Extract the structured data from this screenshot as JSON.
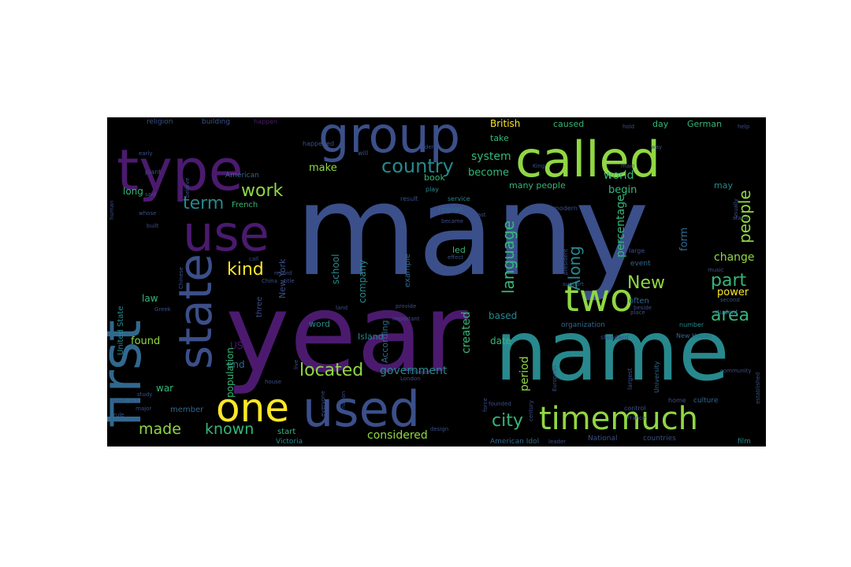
{
  "palette": {
    "background": "#000000",
    "page": "#ffffff",
    "c_purple": "#4b1a6e",
    "c_indigo": "#3b4f8a",
    "c_blue": "#31688e",
    "c_teal": "#27898d",
    "c_green": "#35b779",
    "c_lime": "#90d743",
    "c_yellow": "#fde725"
  },
  "words": [
    {
      "text": "many",
      "color": "c_indigo"
    },
    {
      "text": "year",
      "color": "c_purple"
    },
    {
      "text": "name",
      "color": "c_teal"
    },
    {
      "text": "type",
      "color": "c_purple"
    },
    {
      "text": "group",
      "color": "c_indigo"
    },
    {
      "text": "called",
      "color": "c_lime"
    },
    {
      "text": "first",
      "color": "c_blue"
    },
    {
      "text": "use",
      "color": "c_purple"
    },
    {
      "text": "state",
      "color": "c_indigo"
    },
    {
      "text": "used",
      "color": "c_indigo"
    },
    {
      "text": "one",
      "color": "c_yellow"
    },
    {
      "text": "two",
      "color": "c_lime"
    },
    {
      "text": "timemuch",
      "color": "c_lime"
    },
    {
      "text": "country",
      "color": "c_teal"
    },
    {
      "text": "work",
      "color": "c_lime"
    },
    {
      "text": "term",
      "color": "c_teal"
    },
    {
      "text": "kind",
      "color": "c_yellow"
    },
    {
      "text": "language",
      "color": "c_green"
    },
    {
      "text": "Along",
      "color": "c_teal"
    },
    {
      "text": "people",
      "color": "c_lime"
    },
    {
      "text": "New",
      "color": "c_lime"
    },
    {
      "text": "part",
      "color": "c_green"
    },
    {
      "text": "area",
      "color": "c_green"
    },
    {
      "text": "located",
      "color": "c_lime"
    },
    {
      "text": "city",
      "color": "c_green"
    },
    {
      "text": "made",
      "color": "c_lime"
    },
    {
      "text": "known",
      "color": "c_green"
    },
    {
      "text": "considered",
      "color": "c_lime"
    },
    {
      "text": "government",
      "color": "c_teal"
    },
    {
      "text": "period",
      "color": "c_lime"
    },
    {
      "text": "system",
      "color": "c_green"
    },
    {
      "text": "become",
      "color": "c_green"
    },
    {
      "text": "make",
      "color": "c_lime"
    },
    {
      "text": "world",
      "color": "c_green"
    },
    {
      "text": "begin",
      "color": "c_green"
    },
    {
      "text": "percentage",
      "color": "c_green"
    },
    {
      "text": "form",
      "color": "c_blue"
    },
    {
      "text": "change",
      "color": "c_lime"
    },
    {
      "text": "power",
      "color": "c_yellow"
    },
    {
      "text": "British",
      "color": "c_yellow"
    },
    {
      "text": "caused",
      "color": "c_green"
    },
    {
      "text": "day",
      "color": "c_green"
    },
    {
      "text": "German",
      "color": "c_green"
    },
    {
      "text": "take",
      "color": "c_green"
    },
    {
      "text": "book",
      "color": "c_green"
    },
    {
      "text": "many people",
      "color": "c_green"
    },
    {
      "text": "may",
      "color": "c_teal"
    },
    {
      "text": "long",
      "color": "c_green"
    },
    {
      "text": "found",
      "color": "c_lime"
    },
    {
      "text": "law",
      "color": "c_green"
    },
    {
      "text": "war",
      "color": "c_green"
    },
    {
      "text": "end",
      "color": "c_blue"
    },
    {
      "text": "US",
      "color": "c_purple"
    },
    {
      "text": "population",
      "color": "c_green"
    },
    {
      "text": "school",
      "color": "c_teal"
    },
    {
      "text": "company",
      "color": "c_teal"
    },
    {
      "text": "created",
      "color": "c_green"
    },
    {
      "text": "date",
      "color": "c_green"
    },
    {
      "text": "based",
      "color": "c_teal"
    },
    {
      "text": "word",
      "color": "c_teal"
    },
    {
      "text": "Island",
      "color": "c_teal"
    },
    {
      "text": "According",
      "color": "c_blue"
    },
    {
      "text": "example",
      "color": "c_blue"
    },
    {
      "text": "led",
      "color": "c_green"
    },
    {
      "text": "region",
      "color": "c_blue"
    },
    {
      "text": "New York",
      "color": "c_indigo"
    },
    {
      "text": "French",
      "color": "c_green"
    },
    {
      "text": "American",
      "color": "c_blue"
    },
    {
      "text": "United State",
      "color": "c_teal"
    },
    {
      "text": "member",
      "color": "c_blue"
    },
    {
      "text": "start",
      "color": "c_green"
    },
    {
      "text": "Victoria",
      "color": "c_teal"
    },
    {
      "text": "American Idol",
      "color": "c_blue"
    },
    {
      "text": "National",
      "color": "c_indigo"
    },
    {
      "text": "countries",
      "color": "c_indigo"
    },
    {
      "text": "leader",
      "color": "c_indigo"
    },
    {
      "text": "film",
      "color": "c_teal"
    },
    {
      "text": "three",
      "color": "c_indigo"
    },
    {
      "text": "often",
      "color": "c_blue"
    },
    {
      "text": "organization",
      "color": "c_blue"
    },
    {
      "text": "modern",
      "color": "c_indigo"
    },
    {
      "text": "event",
      "color": "c_blue"
    },
    {
      "text": "large",
      "color": "c_indigo"
    },
    {
      "text": "number",
      "color": "c_teal"
    },
    {
      "text": "New Haven",
      "color": "c_blue"
    },
    {
      "text": "culture",
      "color": "c_blue"
    },
    {
      "text": "home",
      "color": "c_indigo"
    },
    {
      "text": "standard",
      "color": "c_indigo"
    },
    {
      "text": "University",
      "color": "c_blue"
    },
    {
      "text": "control",
      "color": "c_indigo"
    },
    {
      "text": "largest",
      "color": "c_indigo"
    },
    {
      "text": "student",
      "color": "c_blue"
    },
    {
      "text": "religion",
      "color": "c_indigo"
    },
    {
      "text": "building",
      "color": "c_indigo"
    },
    {
      "text": "happen",
      "color": "c_purple"
    },
    {
      "text": "happened",
      "color": "c_indigo"
    },
    {
      "text": "will",
      "color": "c_indigo"
    },
    {
      "text": "order",
      "color": "c_indigo"
    },
    {
      "text": "service",
      "color": "c_teal"
    },
    {
      "text": "play",
      "color": "c_teal"
    },
    {
      "text": "result",
      "color": "c_indigo"
    },
    {
      "text": "plant",
      "color": "c_indigo"
    },
    {
      "text": "said",
      "color": "c_indigo"
    },
    {
      "text": "believe",
      "color": "c_indigo"
    },
    {
      "text": "human",
      "color": "c_indigo"
    },
    {
      "text": "whose",
      "color": "c_indigo"
    },
    {
      "text": "built",
      "color": "c_indigo"
    },
    {
      "text": "call",
      "color": "c_indigo"
    },
    {
      "text": "record",
      "color": "c_indigo"
    },
    {
      "text": "title",
      "color": "c_indigo"
    },
    {
      "text": "Chinese",
      "color": "c_indigo"
    },
    {
      "text": "China",
      "color": "c_indigo"
    },
    {
      "text": "Greek",
      "color": "c_indigo"
    },
    {
      "text": "land",
      "color": "c_indigo"
    },
    {
      "text": "provide",
      "color": "c_indigo"
    },
    {
      "text": "important",
      "color": "c_indigo"
    },
    {
      "text": "house",
      "color": "c_indigo"
    },
    {
      "text": "London",
      "color": "c_indigo"
    },
    {
      "text": "Chopin",
      "color": "c_indigo"
    },
    {
      "text": "founded",
      "color": "c_indigo"
    },
    {
      "text": "nation",
      "color": "c_indigo"
    },
    {
      "text": "rule",
      "color": "c_indigo"
    },
    {
      "text": "major",
      "color": "c_indigo"
    },
    {
      "text": "study",
      "color": "c_indigo"
    },
    {
      "text": "King",
      "color": "c_indigo"
    },
    {
      "text": "main",
      "color": "c_indigo"
    },
    {
      "text": "hold",
      "color": "c_indigo"
    },
    {
      "text": "help",
      "color": "c_indigo"
    },
    {
      "text": "way",
      "color": "c_indigo"
    },
    {
      "text": "last",
      "color": "c_indigo"
    },
    {
      "text": "became",
      "color": "c_indigo"
    },
    {
      "text": "music",
      "color": "c_indigo"
    },
    {
      "text": "support",
      "color": "c_indigo"
    },
    {
      "text": "place",
      "color": "c_indigo"
    },
    {
      "text": "beside",
      "color": "c_indigo"
    },
    {
      "text": "stand",
      "color": "c_indigo"
    },
    {
      "text": "president",
      "color": "c_indigo"
    },
    {
      "text": "force",
      "color": "c_indigo"
    },
    {
      "text": "European",
      "color": "c_indigo"
    },
    {
      "text": "century",
      "color": "c_indigo"
    },
    {
      "text": "France",
      "color": "c_indigo"
    },
    {
      "text": "established",
      "color": "c_indigo"
    },
    {
      "text": "community",
      "color": "c_indigo"
    },
    {
      "text": "second",
      "color": "c_indigo"
    },
    {
      "text": "early",
      "color": "c_indigo"
    },
    {
      "text": "team",
      "color": "c_indigo"
    },
    {
      "text": "Act",
      "color": "c_indigo"
    },
    {
      "text": "live",
      "color": "c_indigo"
    },
    {
      "text": "everyone",
      "color": "c_indigo"
    },
    {
      "text": "effect",
      "color": "c_indigo"
    },
    {
      "text": "usually",
      "color": "c_indigo"
    },
    {
      "text": "design",
      "color": "c_indigo"
    }
  ]
}
